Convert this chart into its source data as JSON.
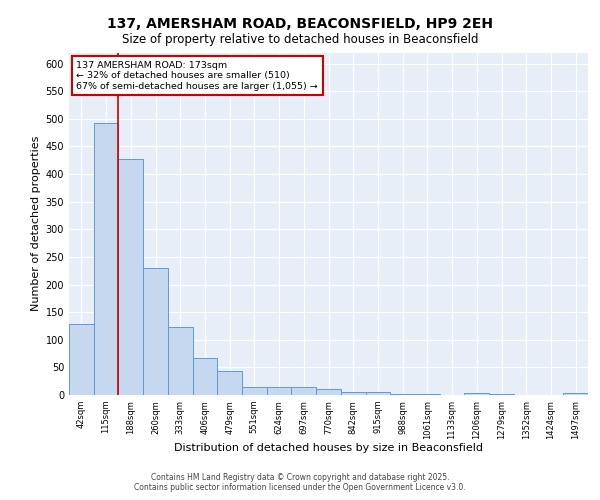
{
  "title1": "137, AMERSHAM ROAD, BEACONSFIELD, HP9 2EH",
  "title2": "Size of property relative to detached houses in Beaconsfield",
  "xlabel": "Distribution of detached houses by size in Beaconsfield",
  "ylabel": "Number of detached properties",
  "bar_labels": [
    "42sqm",
    "115sqm",
    "188sqm",
    "260sqm",
    "333sqm",
    "406sqm",
    "479sqm",
    "551sqm",
    "624sqm",
    "697sqm",
    "770sqm",
    "842sqm",
    "915sqm",
    "988sqm",
    "1061sqm",
    "1133sqm",
    "1206sqm",
    "1279sqm",
    "1352sqm",
    "1424sqm",
    "1497sqm"
  ],
  "bar_values": [
    128,
    493,
    428,
    229,
    124,
    67,
    44,
    15,
    15,
    15,
    11,
    6,
    5,
    1,
    1,
    0,
    4,
    1,
    0,
    0,
    4
  ],
  "bar_color": "#c5d8f0",
  "bar_edge_color": "#5b9bd5",
  "vline_color": "#cc0000",
  "annotation_text": "137 AMERSHAM ROAD: 173sqm\n← 32% of detached houses are smaller (510)\n67% of semi-detached houses are larger (1,055) →",
  "annotation_box_color": "#ffffff",
  "annotation_box_edge": "#cc0000",
  "ylim": [
    0,
    620
  ],
  "yticks": [
    0,
    50,
    100,
    150,
    200,
    250,
    300,
    350,
    400,
    450,
    500,
    550,
    600
  ],
  "footer": "Contains HM Land Registry data © Crown copyright and database right 2025.\nContains public sector information licensed under the Open Government Licence v3.0.",
  "bg_color": "#e8eef8",
  "grid_color": "#ffffff"
}
